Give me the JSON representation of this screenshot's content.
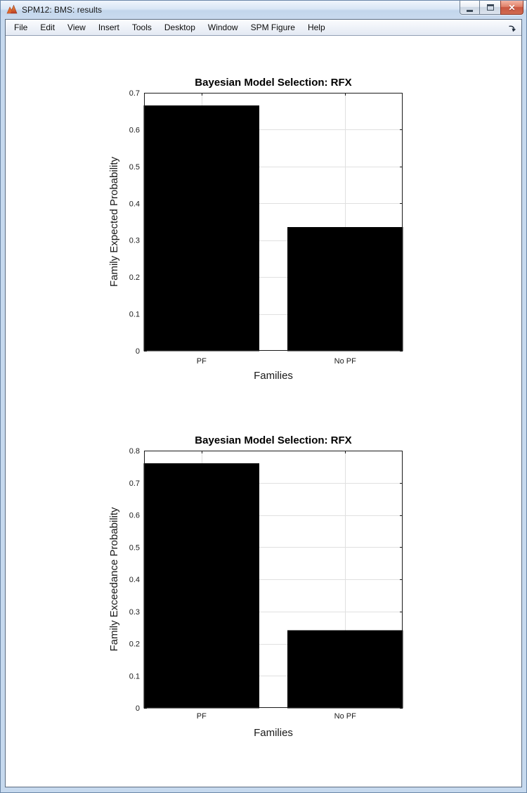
{
  "window": {
    "title": "SPM12: BMS: results"
  },
  "menubar": {
    "items": [
      "File",
      "Edit",
      "View",
      "Insert",
      "Tools",
      "Desktop",
      "Window",
      "SPM Figure",
      "Help"
    ]
  },
  "colors": {
    "bar": "#000000",
    "grid": "#e0e0e0",
    "axis": "#1a1a1a",
    "text": "#1a1a1a"
  },
  "chart_data": [
    {
      "type": "bar",
      "title": "Bayesian Model Selection: RFX",
      "categories": [
        "PF",
        "No PF"
      ],
      "values": [
        0.665,
        0.335
      ],
      "xlabel": "Families",
      "ylabel": "Family Expected Probability",
      "ylim": [
        0,
        0.7
      ],
      "ytick_step": 0.1,
      "xlim": [
        0.6,
        2.4
      ],
      "bar_width": 0.8,
      "grid": true,
      "legend": "none"
    },
    {
      "type": "bar",
      "title": "Bayesian Model Selection: RFX",
      "categories": [
        "PF",
        "No PF"
      ],
      "values": [
        0.76,
        0.24
      ],
      "xlabel": "Families",
      "ylabel": "Family Exceedance Probability",
      "ylim": [
        0,
        0.8
      ],
      "ytick_step": 0.1,
      "xlim": [
        0.6,
        2.4
      ],
      "bar_width": 0.8,
      "grid": true,
      "legend": "none"
    }
  ]
}
